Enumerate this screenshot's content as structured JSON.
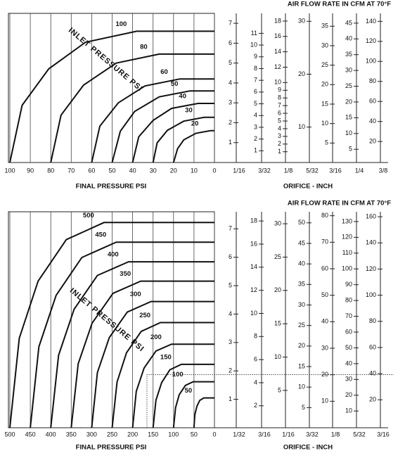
{
  "chart_data": [
    {
      "type": "nomograph",
      "title": "AIR FLOW RATE IN CFM AT 70°F",
      "x_label": "FINAL PRESSURE PSI",
      "scale_label": "ORIFICE - INCH",
      "annotation": "INLET PRESSURE PSI",
      "xlim": [
        100,
        0
      ],
      "xticks": [
        100,
        90,
        80,
        70,
        60,
        50,
        40,
        30,
        20,
        10,
        0
      ],
      "grid": true,
      "ylim": [
        0,
        7.5
      ],
      "color": "#111111",
      "series": [
        {
          "name": "100",
          "x": [
            100,
            94,
            81,
            63,
            38,
            0
          ],
          "values": [
            0,
            2.88,
            4.71,
            6.05,
            6.6,
            6.6
          ]
        },
        {
          "name": "80",
          "x": [
            80,
            75,
            64,
            48,
            27,
            0
          ],
          "values": [
            0,
            2.38,
            3.89,
            5.0,
            5.45,
            5.45
          ]
        },
        {
          "name": "60",
          "x": [
            60,
            56,
            47,
            34,
            17,
            0
          ],
          "values": [
            0,
            1.83,
            3.0,
            3.85,
            4.2,
            4.2
          ]
        },
        {
          "name": "50",
          "x": [
            50,
            46,
            39,
            27,
            12,
            0
          ],
          "values": [
            0,
            1.57,
            2.57,
            3.3,
            3.6,
            3.6
          ]
        },
        {
          "name": "40",
          "x": [
            40,
            37,
            30,
            21,
            8,
            0
          ],
          "values": [
            0,
            1.29,
            2.12,
            2.72,
            2.97,
            2.97
          ]
        },
        {
          "name": "30",
          "x": [
            30,
            28,
            23,
            15,
            5,
            0
          ],
          "values": [
            0,
            0.99,
            1.62,
            2.08,
            2.27,
            2.27
          ]
        },
        {
          "name": "20",
          "x": [
            20,
            18,
            15,
            9,
            2,
            0
          ],
          "values": [
            0,
            0.7,
            1.14,
            1.47,
            1.6,
            1.6
          ]
        }
      ],
      "scales": [
        {
          "label": "1/16",
          "ylim": [
            0,
            7.5
          ],
          "ticks": [
            1,
            2,
            3,
            4,
            5,
            6,
            7
          ]
        },
        {
          "label": "3/32",
          "ylim": [
            0,
            12.7
          ],
          "ticks": [
            1,
            2,
            3,
            4,
            5,
            6,
            7,
            8,
            9,
            10,
            11
          ]
        },
        {
          "label": "1/8",
          "ylim": [
            -0.4,
            19
          ],
          "ticks": [
            1,
            2,
            3,
            4,
            5,
            6,
            7,
            8,
            9,
            10,
            12,
            14,
            16,
            18
          ]
        },
        {
          "label": "5/32",
          "ylim": [
            3.3,
            31.5
          ],
          "ticks": [
            10,
            20,
            30
          ]
        },
        {
          "label": "3/16",
          "ylim": [
            0,
            38.3
          ],
          "ticks": [
            5,
            10,
            15,
            20,
            25,
            30,
            35
          ]
        },
        {
          "label": "1/4",
          "ylim": [
            0.8,
            48.1
          ],
          "ticks": [
            5,
            10,
            15,
            20,
            25,
            30,
            35,
            40,
            45
          ]
        },
        {
          "label": "3/8",
          "ylim": [
            -1,
            148
          ],
          "ticks": [
            20,
            40,
            60,
            80,
            100,
            120,
            140
          ]
        }
      ]
    },
    {
      "type": "nomograph",
      "title": "AIR FLOW RATE IN CFM AT 70°F",
      "x_label": "FINAL PRESSURE PSI",
      "scale_label": "ORIFICE - INCH",
      "annotation": "INLET PRESSURE PSI",
      "xlim": [
        500,
        0
      ],
      "xticks": [
        500,
        450,
        400,
        350,
        300,
        250,
        200,
        150,
        100,
        50,
        0
      ],
      "grid": true,
      "ylim": [
        0,
        7.6
      ],
      "color": "#111111",
      "series": [
        {
          "name": "500",
          "x": [
            500,
            477,
            431,
            362,
            270,
            0
          ],
          "values": [
            0,
            3.15,
            5.16,
            6.62,
            7.22,
            7.22
          ]
        },
        {
          "name": "450",
          "x": [
            450,
            429,
            387,
            324,
            240,
            0
          ],
          "values": [
            0,
            2.85,
            4.66,
            5.99,
            6.53,
            6.53
          ]
        },
        {
          "name": "400",
          "x": [
            400,
            381,
            343,
            286,
            210,
            0
          ],
          "values": [
            0,
            2.55,
            4.17,
            5.36,
            5.84,
            5.84
          ]
        },
        {
          "name": "350",
          "x": [
            350,
            333,
            299,
            248,
            180,
            0
          ],
          "values": [
            0,
            2.25,
            3.68,
            4.73,
            5.16,
            5.16
          ]
        },
        {
          "name": "300",
          "x": [
            300,
            286,
            257,
            213,
            155,
            0
          ],
          "values": [
            0,
            1.94,
            3.17,
            4.07,
            4.44,
            4.44
          ]
        },
        {
          "name": "250",
          "x": [
            250,
            238,
            215,
            179,
            132,
            0
          ],
          "values": [
            0,
            1.61,
            2.64,
            3.39,
            3.7,
            3.7
          ]
        },
        {
          "name": "200",
          "x": [
            200,
            191,
            172,
            143,
            105,
            0
          ],
          "values": [
            0,
            1.28,
            2.1,
            2.7,
            2.94,
            2.94
          ]
        },
        {
          "name": "150",
          "x": [
            150,
            143,
            129,
            109,
            81,
            0
          ],
          "values": [
            0,
            0.97,
            1.59,
            2.04,
            2.23,
            2.23
          ]
        },
        {
          "name": "100",
          "x": [
            100,
            95,
            86,
            71,
            52,
            0
          ],
          "values": [
            0,
            0.71,
            1.16,
            1.49,
            1.62,
            1.62
          ]
        },
        {
          "name": "50",
          "x": [
            50,
            48,
            43,
            36,
            26,
            0
          ],
          "values": [
            0,
            0.46,
            0.75,
            0.96,
            1.05,
            1.05
          ]
        }
      ],
      "reference_line": {
        "x": 165,
        "y": 1.87
      },
      "scales": [
        {
          "label": "1/32",
          "ylim": [
            0,
            7.6
          ],
          "ticks": [
            1,
            2,
            3,
            4,
            5,
            6,
            7
          ]
        },
        {
          "label": "3/16",
          "ylim": [
            0.1,
            18.8
          ],
          "ticks": [
            2,
            4,
            6,
            8,
            10,
            12,
            14,
            16,
            18
          ]
        },
        {
          "label": "1/16",
          "ylim": [
            -0.6,
            31.8
          ],
          "ticks": [
            5,
            10,
            15,
            20,
            25,
            30
          ]
        },
        {
          "label": "3/32",
          "ylim": [
            0.1,
            52.7
          ],
          "ticks": [
            5,
            10,
            15,
            20,
            25,
            30,
            35,
            40,
            45,
            50
          ]
        },
        {
          "label": "1/8",
          "ylim": [
            0,
            81.5
          ],
          "ticks": [
            10,
            20,
            30,
            40,
            50,
            60,
            70,
            80
          ]
        },
        {
          "label": "5/32",
          "ylim": [
            -0.6,
            136.2
          ],
          "ticks": [
            10,
            20,
            30,
            40,
            50,
            60,
            70,
            80,
            90,
            100,
            110,
            120,
            130
          ]
        },
        {
          "label": "3/16",
          "ylim": [
            -1.4,
            163.8
          ],
          "ticks": [
            20,
            40,
            60,
            80,
            100,
            120,
            140,
            160
          ]
        }
      ]
    }
  ]
}
